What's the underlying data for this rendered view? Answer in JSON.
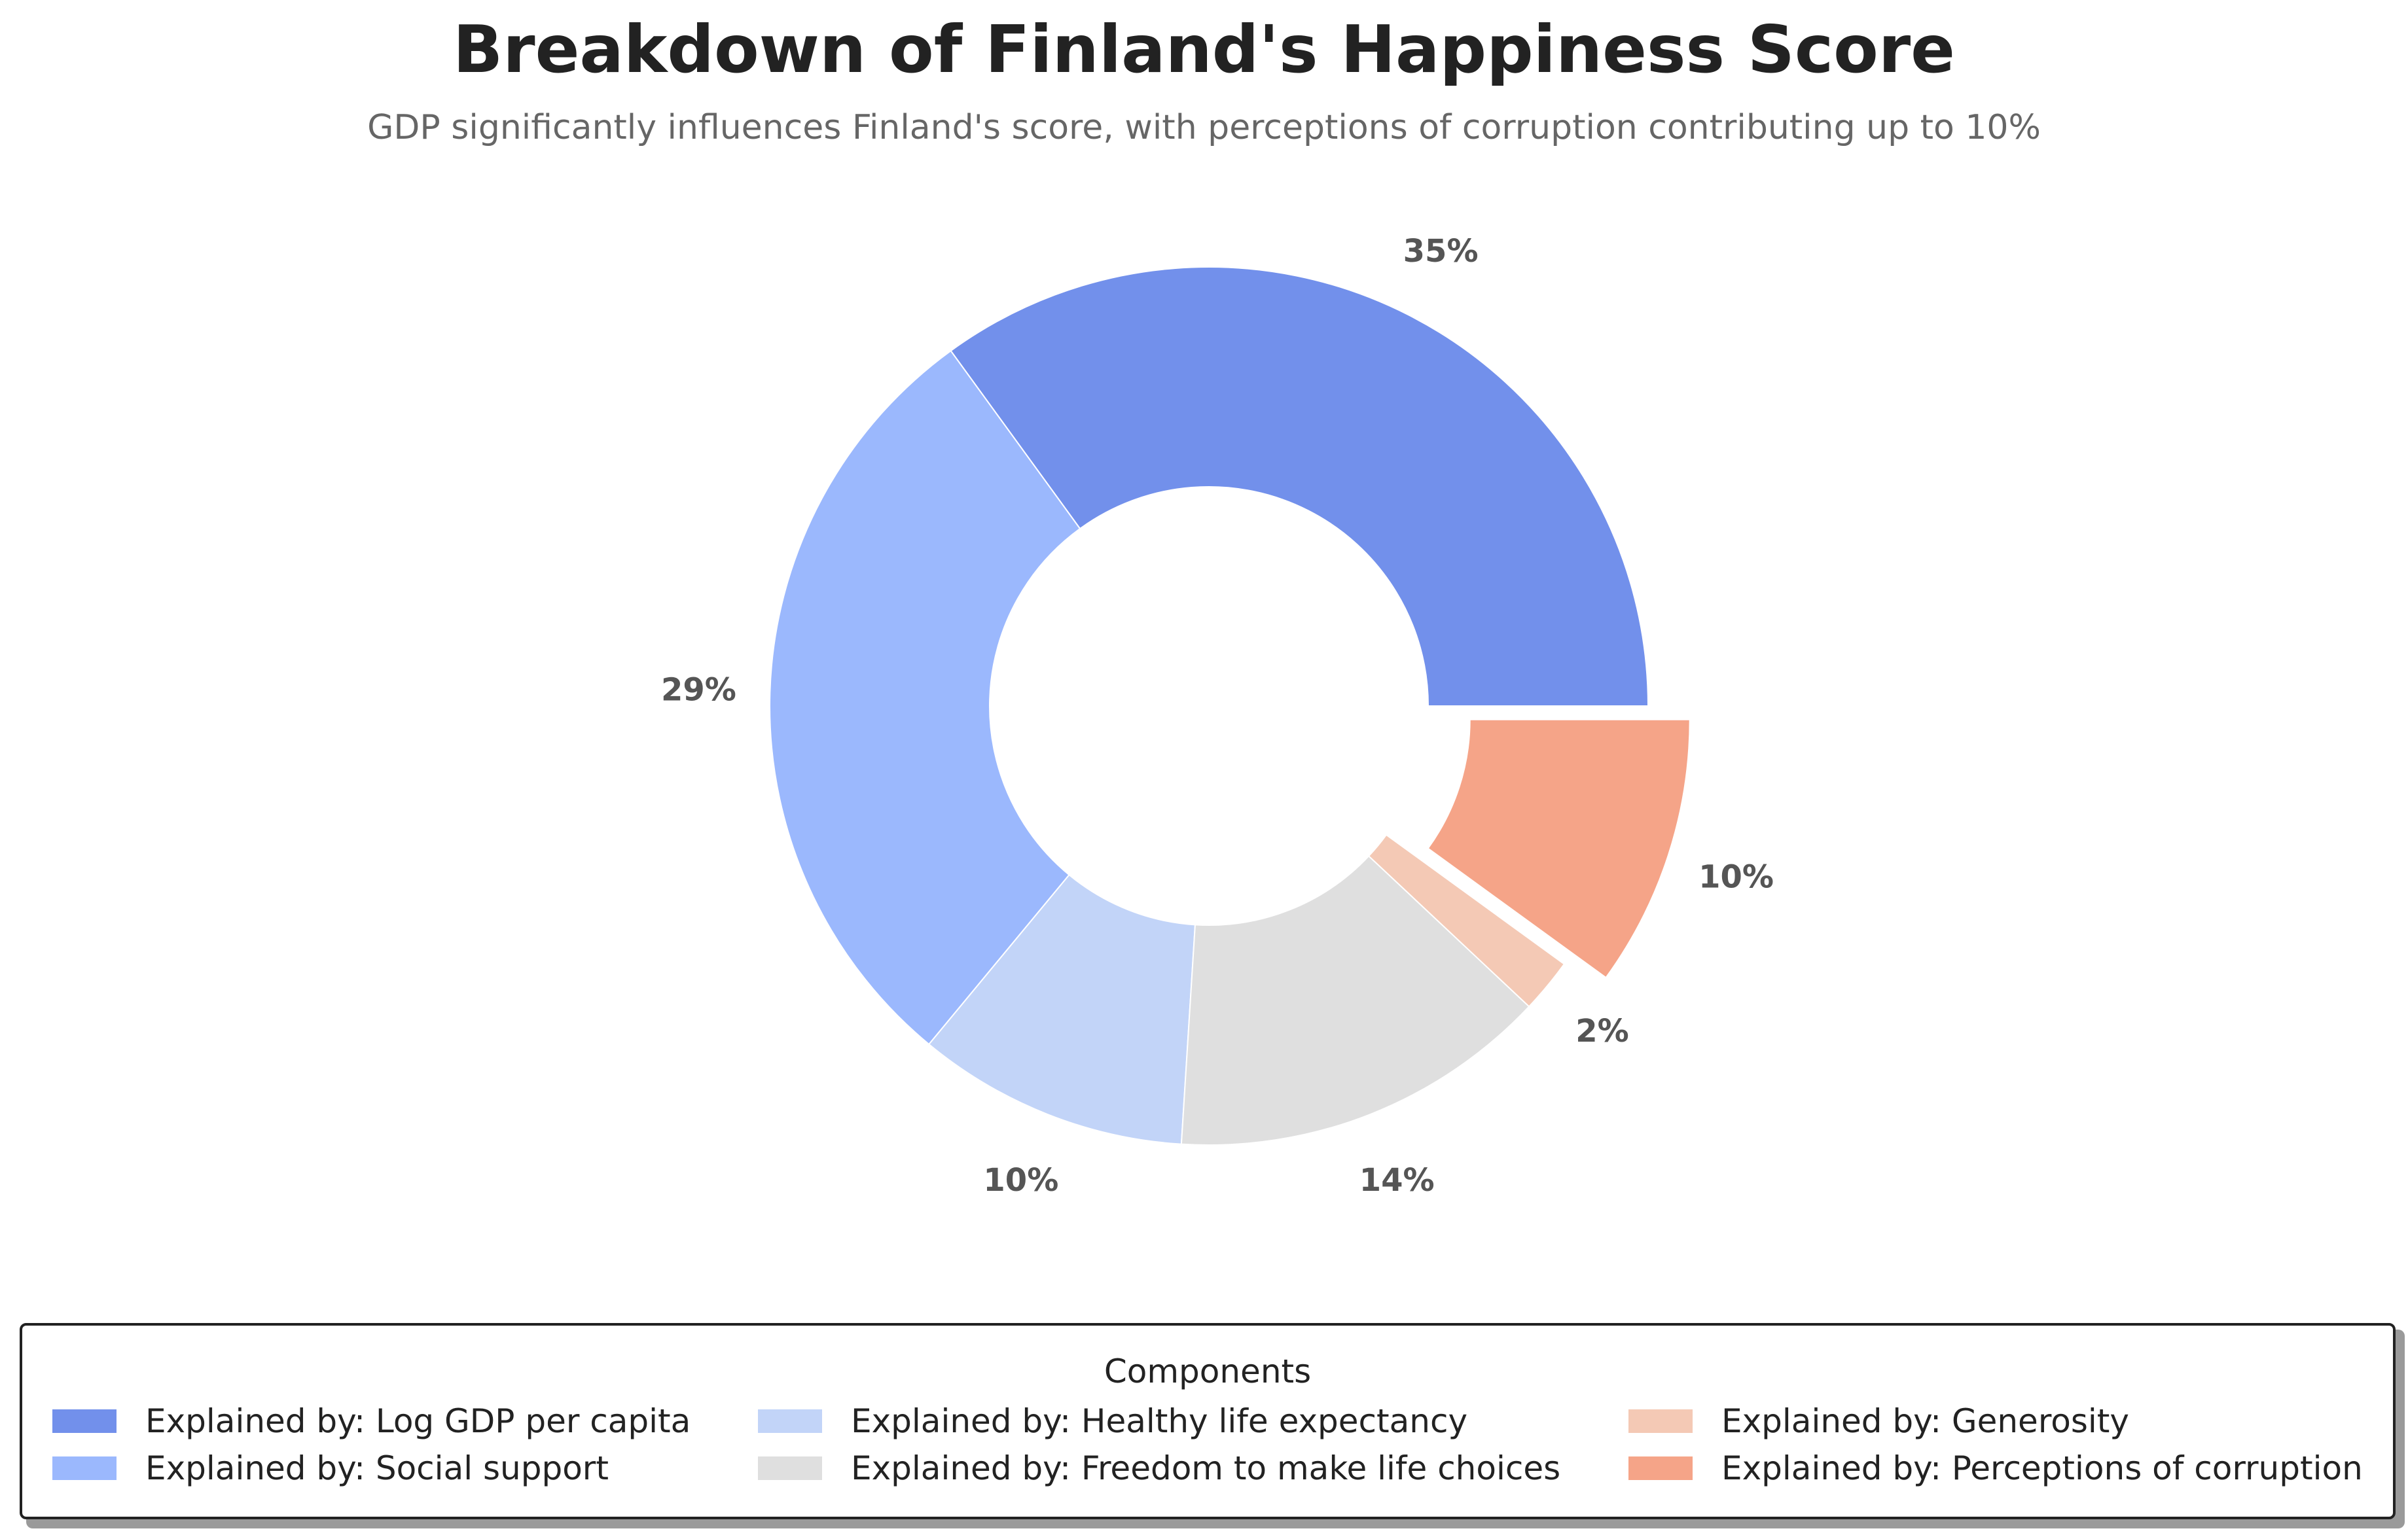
{
  "chart_data": {
    "type": "pie",
    "title": "Breakdown of Finland's Happiness Score",
    "subtitle": "GDP significantly influences Finland's score, with perceptions of corruption contributing up to 10%",
    "legend_title": "Components",
    "legend_position": "bottom",
    "donut": true,
    "categories": [
      "Explained by: Log GDP per capita",
      "Explained by: Social support",
      "Explained by: Healthy life expectancy",
      "Explained by: Freedom to make life choices",
      "Explained by: Generosity",
      "Explained by: Perceptions of corruption"
    ],
    "values": [
      35,
      29,
      10,
      14,
      2,
      10
    ],
    "labels": [
      "35%",
      "29%",
      "10%",
      "14%",
      "2%",
      "10%"
    ],
    "colors": [
      "#7290eb",
      "#9bb8fd",
      "#c2d4f8",
      "#dfdfdf",
      "#f4c9b5",
      "#f5a488"
    ],
    "exploded": [
      false,
      false,
      false,
      false,
      false,
      true
    ]
  }
}
